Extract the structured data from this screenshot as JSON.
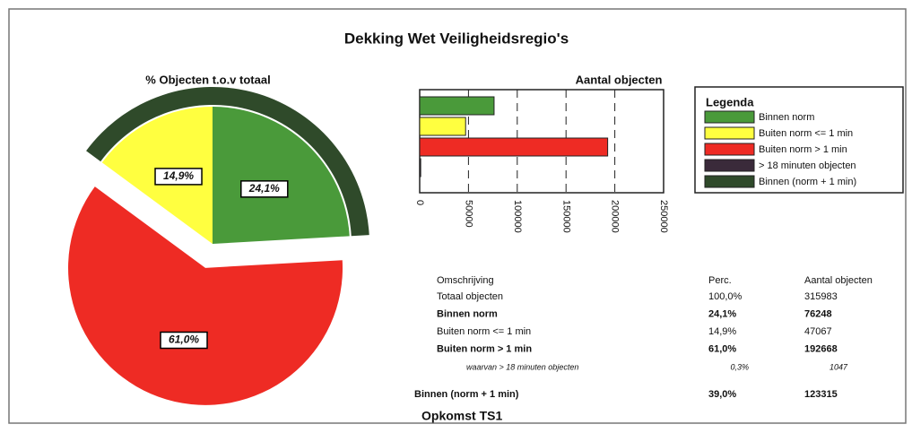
{
  "title": "Dekking Wet Veiligheidsregio's",
  "chart_data": [
    {
      "type": "pie",
      "title": "% Objecten t.o.v totaal",
      "categories": [
        "Binnen norm",
        "Buiten norm > 1 min",
        "Buiten norm <= 1 min"
      ],
      "values": [
        24.1,
        61.0,
        14.9
      ],
      "value_labels": [
        "24,1%",
        "61,0%",
        "14,9%"
      ],
      "colors": [
        "#4a9a3a",
        "#ee2b24",
        "#ffff40"
      ],
      "exploded": [
        false,
        true,
        false
      ],
      "ring": {
        "name": "Binnen (norm + 1 min)",
        "value": 39.0,
        "color": "#2f4a2a"
      }
    },
    {
      "type": "bar",
      "orientation": "horizontal",
      "title": "Aantal objecten",
      "categories": [
        null,
        null,
        null,
        null
      ],
      "values": [
        76248,
        47067,
        192668,
        1047
      ],
      "colors": [
        "#4a9a3a",
        "#ffff40",
        "#ee2b24",
        "#3a2a3a"
      ],
      "xlim": [
        0,
        250000
      ],
      "xticks": [
        0,
        50000,
        100000,
        150000,
        200000,
        250000
      ],
      "grid": true
    }
  ],
  "legend": {
    "title": "Legenda",
    "items": [
      {
        "label": "Binnen norm",
        "color": "#4a9a3a"
      },
      {
        "label": "Buiten norm <= 1 min",
        "color": "#ffff40"
      },
      {
        "label": "Buiten norm > 1 min",
        "color": "#ee2b24"
      },
      {
        "label": "> 18 minuten objecten",
        "color": "#3a2a3a"
      },
      {
        "label": "Binnen (norm + 1 min)",
        "color": "#2f4a2a"
      }
    ]
  },
  "table": {
    "header": [
      "Omschrijving",
      "Perc.",
      "Aantal objecten"
    ],
    "rows": [
      [
        "Totaal objecten",
        "100,0%",
        "315983"
      ],
      [
        "Binnen norm",
        "24,1%",
        "76248"
      ],
      [
        "Buiten norm <= 1 min",
        "14,9%",
        "47067"
      ],
      [
        "Buiten norm > 1 min",
        "61,0%",
        "192668"
      ]
    ],
    "sub_row": [
      "waarvan  > 18 minuten objecten",
      "0,3%",
      "1047"
    ],
    "total_row": [
      "Binnen (norm + 1 min)",
      "39,0%",
      "123315"
    ]
  },
  "footer": "Opkomst TS1"
}
